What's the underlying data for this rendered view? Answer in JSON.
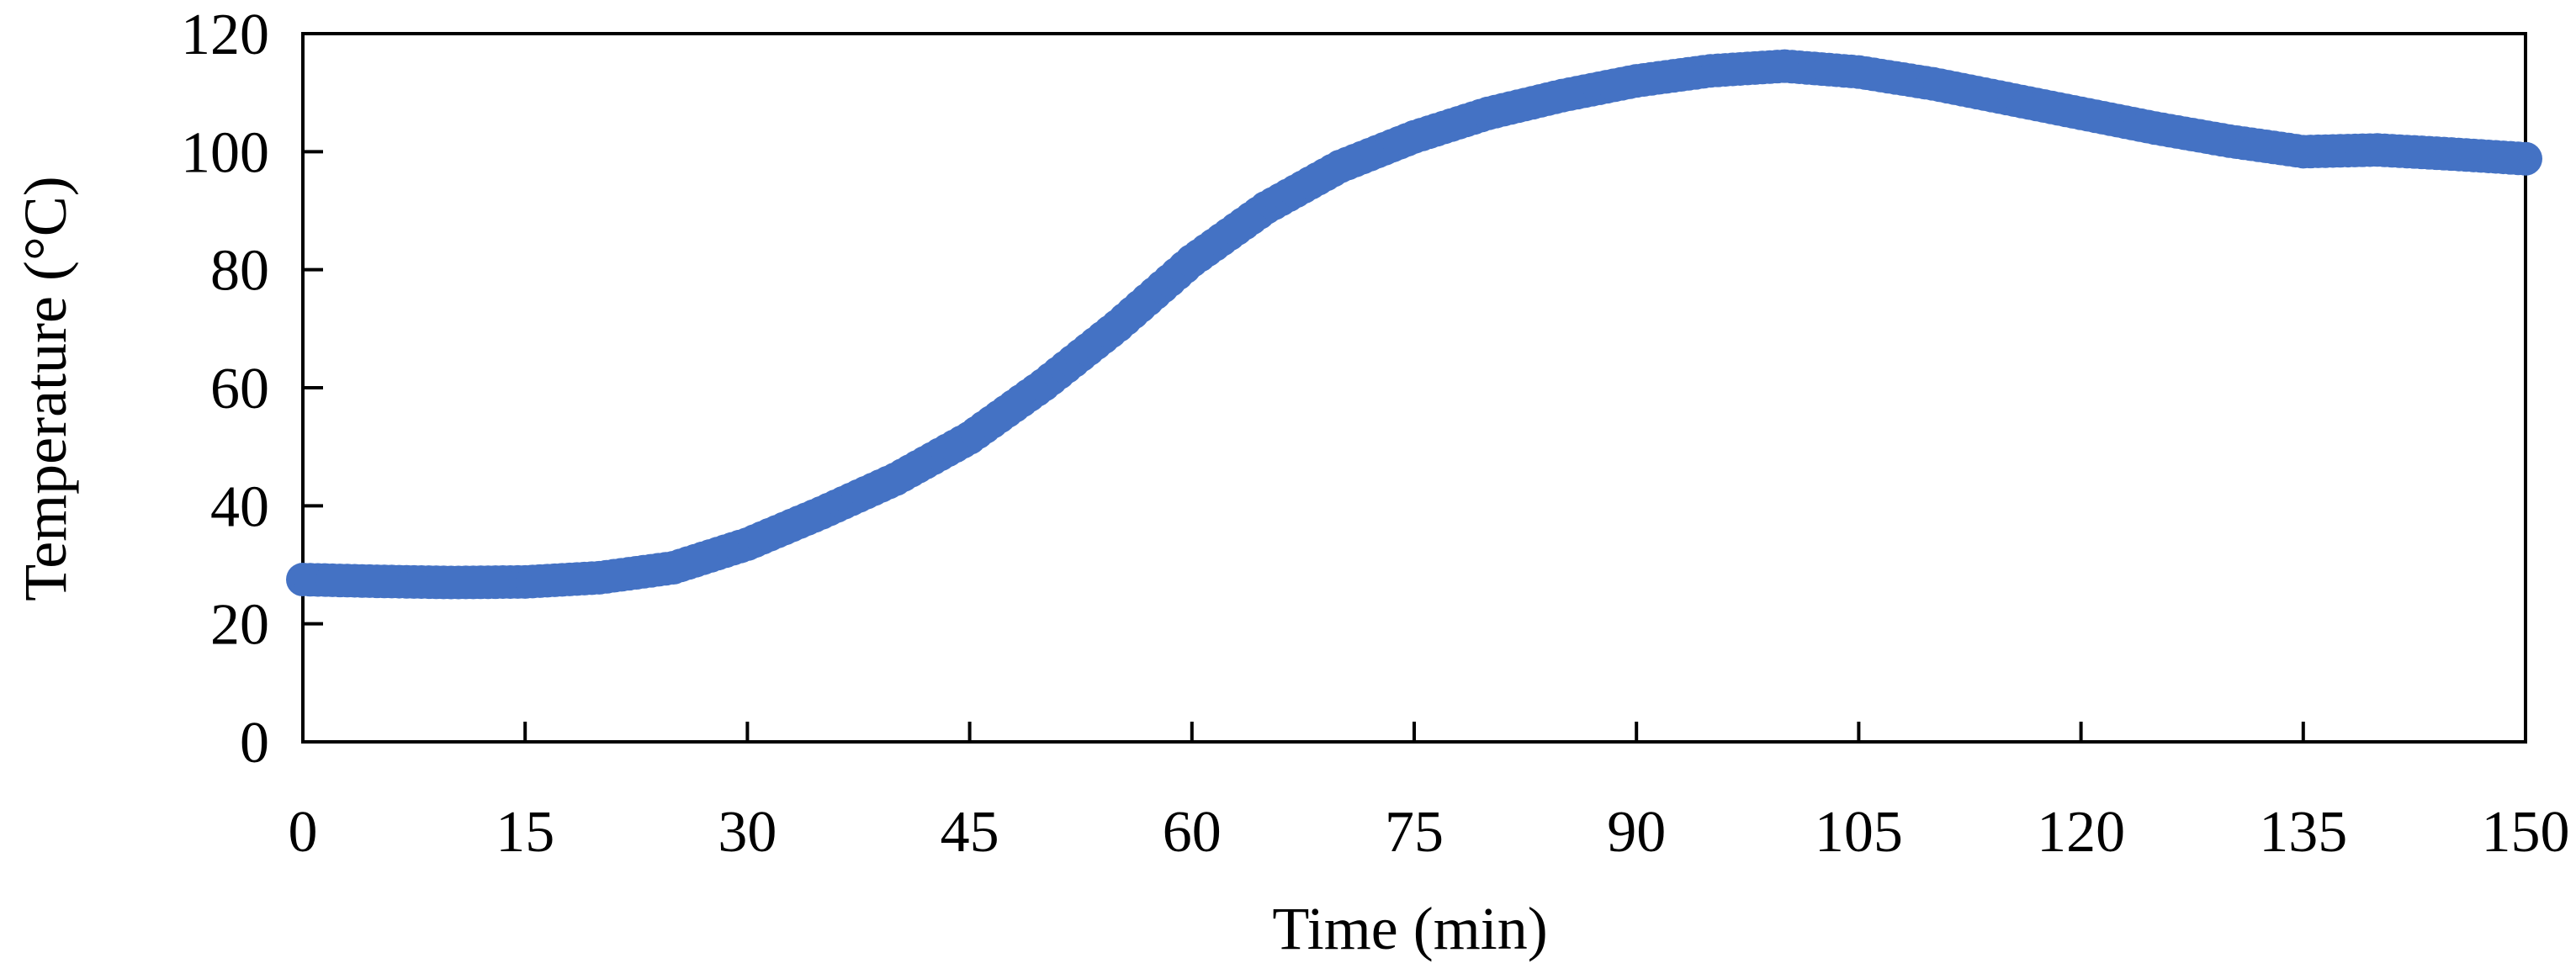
{
  "chart_data": {
    "type": "scatter",
    "title": "",
    "xlabel": "Time (min)",
    "ylabel": "Temperature (°C)",
    "xlim": [
      0,
      150
    ],
    "ylim": [
      0,
      120
    ],
    "xticks": [
      0,
      15,
      30,
      45,
      60,
      75,
      90,
      105,
      120,
      135,
      150
    ],
    "yticks": [
      0,
      20,
      40,
      60,
      80,
      100,
      120
    ],
    "grid": false,
    "legend": "none",
    "series": [
      {
        "color": "#4472C4",
        "marker": "circle",
        "x": [
          0,
          5,
          10,
          15,
          20,
          25,
          30,
          35,
          40,
          45,
          50,
          55,
          60,
          65,
          70,
          75,
          80,
          85,
          90,
          95,
          100,
          105,
          110,
          115,
          120,
          125,
          130,
          135,
          140,
          145,
          150
        ],
        "y": [
          27.5,
          27.2,
          27.0,
          27.1,
          27.8,
          29.5,
          33.5,
          38.8,
          44.5,
          51.5,
          60.5,
          70.5,
          81.5,
          90.5,
          97.5,
          102.5,
          106.5,
          109.5,
          112.0,
          113.7,
          114.5,
          113.5,
          111.5,
          109.0,
          106.5,
          104.0,
          101.8,
          100.0,
          100.3,
          99.6,
          98.8
        ]
      }
    ]
  }
}
